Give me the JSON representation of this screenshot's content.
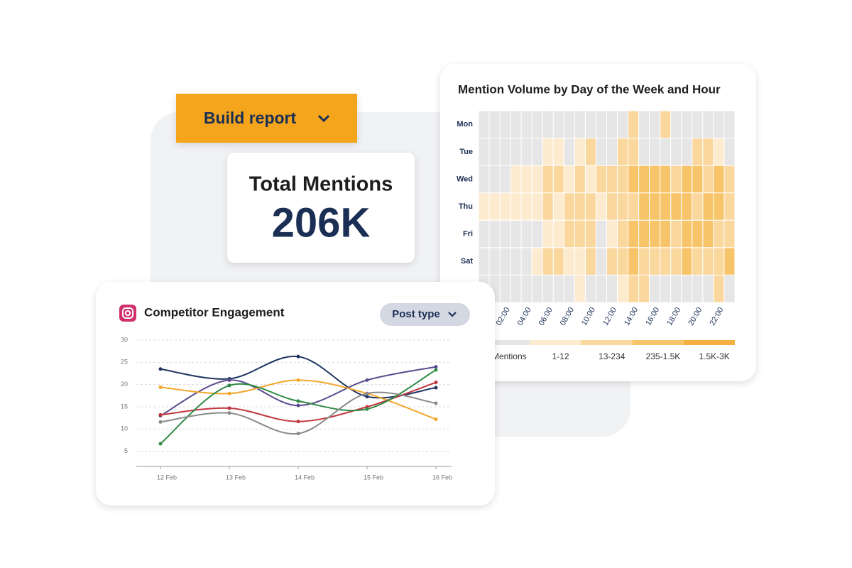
{
  "build_report": "Build report",
  "total_mentions": {
    "label": "Total Mentions",
    "value": "206K"
  },
  "chart_data": [
    {
      "type": "heatmap",
      "title": "Mention Volume by Day of the Week and Hour",
      "x": [
        null,
        null,
        "02:00",
        null,
        "04:00",
        null,
        "06:00",
        null,
        "08:00",
        null,
        "10:00",
        null,
        "12:00",
        null,
        "14:00",
        null,
        "16:00",
        null,
        "18:00",
        null,
        "20:00",
        null,
        "22:00",
        null
      ],
      "y": [
        "Mon",
        "Tue",
        "Wed",
        "Thu",
        "Fri",
        "Sat",
        null
      ],
      "values": [
        [
          0,
          0,
          0,
          0,
          0,
          0,
          0,
          0,
          0,
          0,
          0,
          0,
          0,
          0,
          2,
          0,
          0,
          2,
          0,
          0,
          0,
          0,
          0,
          0
        ],
        [
          0,
          0,
          0,
          0,
          0,
          0,
          1,
          1,
          0,
          1,
          2,
          0,
          0,
          2,
          2,
          0,
          0,
          0,
          0,
          0,
          2,
          2,
          1,
          0
        ],
        [
          0,
          0,
          0,
          1,
          1,
          1,
          2,
          2,
          1,
          2,
          1,
          2,
          2,
          2,
          3,
          3,
          3,
          3,
          2,
          3,
          3,
          2,
          3,
          2
        ],
        [
          1,
          1,
          1,
          1,
          1,
          1,
          2,
          1,
          2,
          2,
          2,
          1,
          2,
          2,
          2,
          3,
          3,
          3,
          3,
          3,
          2,
          3,
          3,
          2
        ],
        [
          0,
          0,
          0,
          0,
          0,
          0,
          1,
          1,
          2,
          2,
          2,
          0,
          1,
          2,
          3,
          3,
          3,
          3,
          2,
          3,
          3,
          3,
          2,
          2
        ],
        [
          0,
          0,
          0,
          0,
          0,
          1,
          2,
          2,
          1,
          1,
          2,
          0,
          2,
          2,
          3,
          2,
          2,
          2,
          2,
          3,
          2,
          2,
          2,
          3
        ],
        [
          0,
          0,
          0,
          0,
          0,
          0,
          0,
          0,
          0,
          1,
          0,
          0,
          0,
          1,
          2,
          2,
          0,
          0,
          0,
          0,
          0,
          0,
          2,
          0
        ]
      ],
      "legend": {
        "labels": [
          "Mentions",
          "1-12",
          "13-234",
          "235-1.5K",
          "1.5K-3K"
        ],
        "colors": [
          "#e6e6e6",
          "#fdebcf",
          "#fad79c",
          "#f8c469",
          "#f5b041"
        ]
      }
    },
    {
      "type": "line",
      "title": "Competitor Engagement",
      "filter": "Post type",
      "categories": [
        "12 Feb",
        "13 Feb",
        "14 Feb",
        "15 Feb",
        "16 Feb"
      ],
      "series": [
        {
          "color": "#1f3461",
          "values": [
            23.5,
            21.3,
            26.3,
            17.3,
            19.3
          ]
        },
        {
          "color": "#5a4b8e",
          "values": [
            13,
            21,
            15.3,
            21,
            24
          ]
        },
        {
          "color": "#f2a62a",
          "values": [
            19.4,
            18,
            21,
            18,
            12.2
          ]
        },
        {
          "color": "#c0363e",
          "values": [
            13.2,
            14.7,
            11.7,
            15,
            20.5
          ]
        },
        {
          "color": "#2f8a44",
          "values": [
            6.7,
            19.8,
            16.3,
            14.5,
            23.3
          ]
        },
        {
          "color": "#8a8a8a",
          "values": [
            11.6,
            13.6,
            9,
            18,
            15.8
          ]
        }
      ],
      "ylim": [
        0,
        30
      ],
      "yticks": [
        5,
        10,
        15,
        20,
        25,
        30
      ],
      "grid": true
    }
  ]
}
